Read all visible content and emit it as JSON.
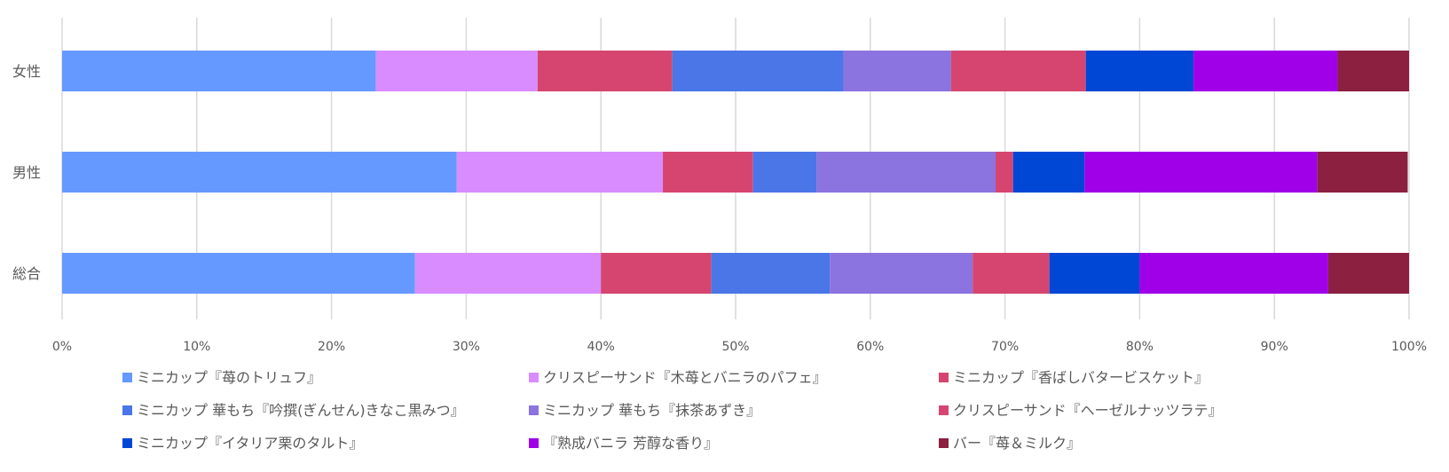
{
  "chart_data": {
    "type": "bar",
    "orientation": "horizontal",
    "stacked": "percent",
    "title": "",
    "categories": [
      "女性",
      "男性",
      "総合"
    ],
    "x_ticks": [
      "0%",
      "10%",
      "20%",
      "30%",
      "40%",
      "50%",
      "60%",
      "70%",
      "80%",
      "90%",
      "100%"
    ],
    "xlim": [
      0,
      100
    ],
    "grid": true,
    "legend_position": "bottom",
    "series": [
      {
        "name": "ミニカップ『苺のトリュフ』",
        "color": "#6699FF",
        "values": [
          23.3,
          29.3,
          26.2
        ]
      },
      {
        "name": "クリスピーサンド『木苺とバニラのパフェ』",
        "color": "#D98CFF",
        "values": [
          12.0,
          15.3,
          13.8
        ]
      },
      {
        "name": "ミニカップ『香ばしバタービスケット』",
        "color": "#D64570",
        "values": [
          10.0,
          6.7,
          8.2
        ]
      },
      {
        "name": "ミニカップ 華もち『吟撰(ぎんせん)きなこ黒みつ』",
        "color": "#4A76E8",
        "values": [
          12.7,
          4.7,
          8.8
        ]
      },
      {
        "name": "ミニカップ 華もち『抹茶あずき』",
        "color": "#8B73E0",
        "values": [
          8.0,
          13.3,
          10.6
        ]
      },
      {
        "name": "クリスピーサンド『ヘーゼルナッツラテ』",
        "color": "#D64570",
        "values": [
          10.0,
          1.3,
          5.7
        ]
      },
      {
        "name": "ミニカップ『イタリア栗のタルト』",
        "color": "#0047D6",
        "values": [
          8.0,
          5.3,
          6.7
        ]
      },
      {
        "name": "『熟成バニラ 芳醇な香り』",
        "color": "#A000E8",
        "values": [
          10.7,
          17.3,
          14.0
        ]
      },
      {
        "name": "バー『苺＆ミルク』",
        "color": "#8B2040",
        "values": [
          5.3,
          6.7,
          6.0
        ]
      }
    ]
  }
}
